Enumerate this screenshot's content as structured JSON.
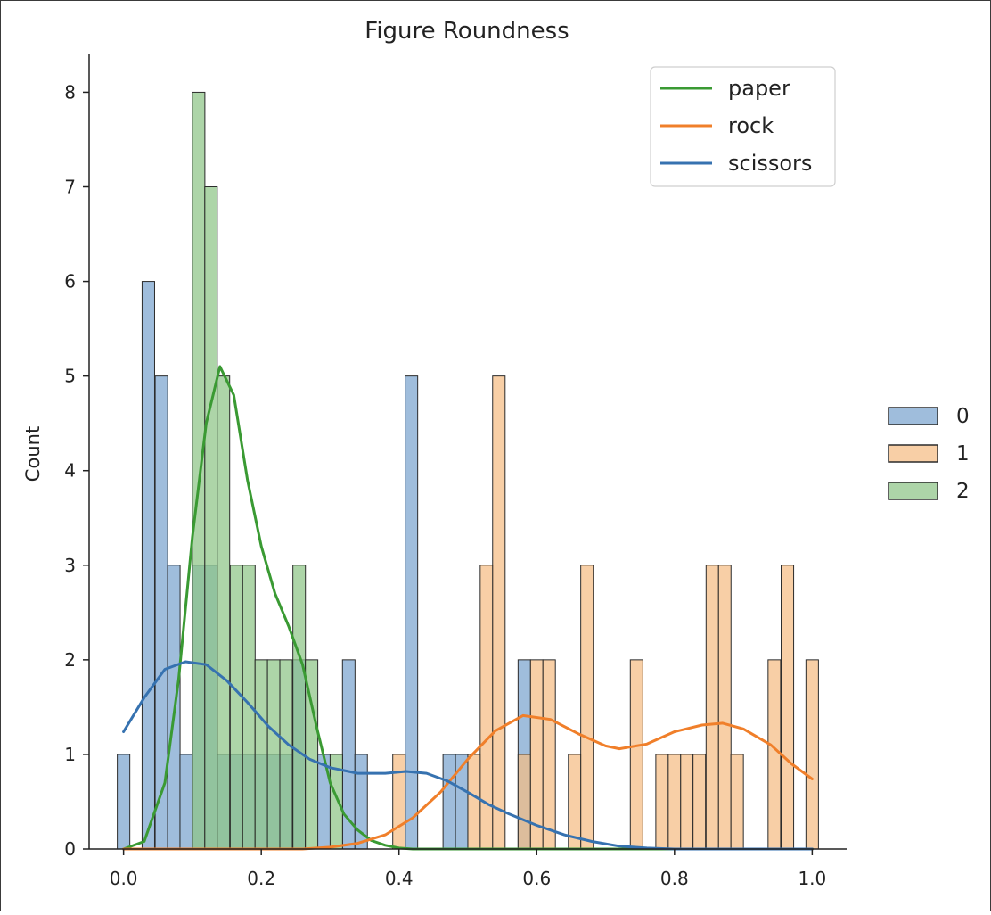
{
  "chart_data": {
    "type": "bar",
    "title": "Figure Roundness",
    "xlabel": "",
    "ylabel": "Count",
    "xlim": [
      -0.05,
      1.05
    ],
    "ylim": [
      0,
      8.4
    ],
    "xticks": [
      "0.0",
      "0.2",
      "0.4",
      "0.6",
      "0.8",
      "1.0"
    ],
    "yticks": [
      "0",
      "1",
      "2",
      "3",
      "4",
      "5",
      "6",
      "7",
      "8"
    ],
    "bin_width": 0.018182,
    "hist_series": [
      {
        "name": "0",
        "color": "#7aa4cf",
        "bins": [
          {
            "x": 0.0,
            "count": 1
          },
          {
            "x": 0.036,
            "count": 6
          },
          {
            "x": 0.055,
            "count": 5
          },
          {
            "x": 0.073,
            "count": 3
          },
          {
            "x": 0.091,
            "count": 1
          },
          {
            "x": 0.109,
            "count": 3
          },
          {
            "x": 0.127,
            "count": 3
          },
          {
            "x": 0.145,
            "count": 1
          },
          {
            "x": 0.164,
            "count": 1
          },
          {
            "x": 0.182,
            "count": 1
          },
          {
            "x": 0.2,
            "count": 1
          },
          {
            "x": 0.218,
            "count": 1
          },
          {
            "x": 0.236,
            "count": 1
          },
          {
            "x": 0.255,
            "count": 2
          },
          {
            "x": 0.291,
            "count": 1
          },
          {
            "x": 0.327,
            "count": 2
          },
          {
            "x": 0.345,
            "count": 1
          },
          {
            "x": 0.418,
            "count": 5
          },
          {
            "x": 0.473,
            "count": 1
          },
          {
            "x": 0.491,
            "count": 1
          },
          {
            "x": 0.582,
            "count": 2
          }
        ]
      },
      {
        "name": "1",
        "color": "#f5bc84",
        "bins": [
          {
            "x": 0.4,
            "count": 1
          },
          {
            "x": 0.509,
            "count": 1
          },
          {
            "x": 0.527,
            "count": 3
          },
          {
            "x": 0.545,
            "count": 5
          },
          {
            "x": 0.582,
            "count": 1
          },
          {
            "x": 0.6,
            "count": 2
          },
          {
            "x": 0.618,
            "count": 2
          },
          {
            "x": 0.655,
            "count": 1
          },
          {
            "x": 0.673,
            "count": 3
          },
          {
            "x": 0.745,
            "count": 2
          },
          {
            "x": 0.782,
            "count": 1
          },
          {
            "x": 0.8,
            "count": 1
          },
          {
            "x": 0.818,
            "count": 1
          },
          {
            "x": 0.836,
            "count": 1
          },
          {
            "x": 0.855,
            "count": 3
          },
          {
            "x": 0.873,
            "count": 3
          },
          {
            "x": 0.891,
            "count": 1
          },
          {
            "x": 0.945,
            "count": 2
          },
          {
            "x": 0.964,
            "count": 3
          },
          {
            "x": 1.0,
            "count": 2
          }
        ]
      },
      {
        "name": "2",
        "color": "#8dc587",
        "bins": [
          {
            "x": 0.109,
            "count": 8
          },
          {
            "x": 0.127,
            "count": 7
          },
          {
            "x": 0.145,
            "count": 5
          },
          {
            "x": 0.164,
            "count": 3
          },
          {
            "x": 0.182,
            "count": 3
          },
          {
            "x": 0.2,
            "count": 2
          },
          {
            "x": 0.218,
            "count": 2
          },
          {
            "x": 0.236,
            "count": 2
          },
          {
            "x": 0.255,
            "count": 3
          },
          {
            "x": 0.273,
            "count": 2
          },
          {
            "x": 0.309,
            "count": 1
          }
        ]
      }
    ],
    "kde_series": [
      {
        "name": "paper",
        "color": "#3a9a33",
        "points": [
          [
            0.0,
            0.0
          ],
          [
            0.03,
            0.08
          ],
          [
            0.06,
            0.7
          ],
          [
            0.08,
            1.8
          ],
          [
            0.1,
            3.3
          ],
          [
            0.12,
            4.5
          ],
          [
            0.14,
            5.1
          ],
          [
            0.16,
            4.8
          ],
          [
            0.18,
            3.9
          ],
          [
            0.2,
            3.2
          ],
          [
            0.22,
            2.7
          ],
          [
            0.24,
            2.35
          ],
          [
            0.26,
            1.95
          ],
          [
            0.28,
            1.3
          ],
          [
            0.3,
            0.7
          ],
          [
            0.32,
            0.37
          ],
          [
            0.34,
            0.2
          ],
          [
            0.36,
            0.09
          ],
          [
            0.38,
            0.04
          ],
          [
            0.4,
            0.01
          ],
          [
            0.42,
            0.0
          ],
          [
            1.0,
            0.0
          ]
        ]
      },
      {
        "name": "rock",
        "color": "#f07f2a",
        "points": [
          [
            0.0,
            0.0
          ],
          [
            0.26,
            0.0
          ],
          [
            0.3,
            0.02
          ],
          [
            0.34,
            0.06
          ],
          [
            0.38,
            0.15
          ],
          [
            0.42,
            0.33
          ],
          [
            0.46,
            0.6
          ],
          [
            0.5,
            0.95
          ],
          [
            0.54,
            1.25
          ],
          [
            0.58,
            1.41
          ],
          [
            0.62,
            1.37
          ],
          [
            0.66,
            1.22
          ],
          [
            0.7,
            1.09
          ],
          [
            0.72,
            1.06
          ],
          [
            0.76,
            1.11
          ],
          [
            0.8,
            1.24
          ],
          [
            0.84,
            1.31
          ],
          [
            0.87,
            1.33
          ],
          [
            0.9,
            1.27
          ],
          [
            0.94,
            1.1
          ],
          [
            0.97,
            0.9
          ],
          [
            1.0,
            0.74
          ]
        ]
      },
      {
        "name": "scissors",
        "color": "#3672b0",
        "points": [
          [
            0.0,
            1.24
          ],
          [
            0.03,
            1.6
          ],
          [
            0.06,
            1.9
          ],
          [
            0.09,
            1.98
          ],
          [
            0.12,
            1.95
          ],
          [
            0.15,
            1.78
          ],
          [
            0.18,
            1.55
          ],
          [
            0.21,
            1.3
          ],
          [
            0.24,
            1.1
          ],
          [
            0.27,
            0.95
          ],
          [
            0.3,
            0.86
          ],
          [
            0.34,
            0.8
          ],
          [
            0.38,
            0.8
          ],
          [
            0.41,
            0.82
          ],
          [
            0.44,
            0.8
          ],
          [
            0.47,
            0.72
          ],
          [
            0.5,
            0.6
          ],
          [
            0.53,
            0.47
          ],
          [
            0.56,
            0.37
          ],
          [
            0.6,
            0.25
          ],
          [
            0.64,
            0.15
          ],
          [
            0.68,
            0.08
          ],
          [
            0.72,
            0.03
          ],
          [
            0.76,
            0.01
          ],
          [
            0.8,
            0.0
          ],
          [
            1.0,
            0.0
          ]
        ]
      }
    ],
    "legend_lines_placement": "top-right",
    "legend_hist_placement": "outside-right",
    "grid": false
  }
}
